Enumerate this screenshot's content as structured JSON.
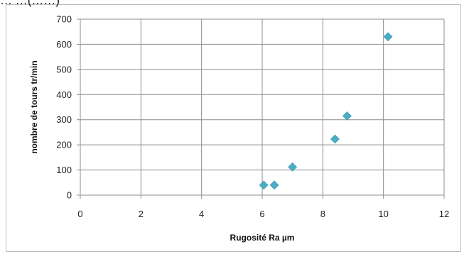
{
  "top_fragment": "… …(……)",
  "colors": {
    "marker": "#4bacc6",
    "marker_stroke": "#3d97ad",
    "grid": "#8c8c8c",
    "axis": "#8c8c8c",
    "frame": "#bcbcbc",
    "text": "#222222"
  },
  "chart_data": {
    "type": "scatter",
    "title": "",
    "xlabel": "Rugosité Ra µm",
    "ylabel": "nombre de tours tr/min",
    "xlim": [
      0,
      12
    ],
    "ylim": [
      0,
      700
    ],
    "xticks": [
      0,
      2,
      4,
      6,
      8,
      10,
      12
    ],
    "yticks": [
      0,
      100,
      200,
      300,
      400,
      500,
      600,
      700
    ],
    "grid": true,
    "legend": "none",
    "marker": "diamond",
    "series": [
      {
        "x": [
          6.05,
          6.4,
          7.0,
          8.4,
          8.8,
          10.15
        ],
        "y": [
          40,
          40,
          112,
          223,
          315,
          630
        ]
      }
    ]
  }
}
